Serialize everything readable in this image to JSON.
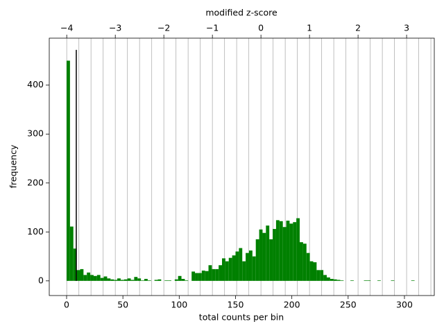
{
  "chart_data": {
    "type": "histogram",
    "xlabel": "total counts per bin",
    "ylabel": "frequency",
    "x2label": "modified z-score",
    "color": "#008000",
    "bins": [
      0,
      3,
      6,
      9,
      12,
      15,
      18,
      21,
      24,
      27,
      30,
      33,
      36,
      39,
      42,
      45,
      48,
      51,
      54,
      57,
      60,
      63,
      66,
      69,
      72,
      75,
      78,
      81,
      84,
      87,
      90,
      93,
      96,
      99,
      102,
      105,
      108,
      111,
      114,
      117,
      120,
      123,
      126,
      129,
      132,
      135,
      138,
      141,
      144,
      147,
      150,
      153,
      156,
      159,
      162,
      165,
      168,
      171,
      174,
      177,
      180,
      183,
      186,
      189,
      192,
      195,
      198,
      201,
      204,
      207,
      210,
      213,
      216,
      219,
      222,
      225,
      228,
      231,
      234,
      237,
      240,
      243,
      246,
      249,
      252,
      255,
      258,
      261,
      264,
      267,
      270,
      273,
      276,
      279,
      282,
      285,
      288,
      291,
      294,
      297,
      300,
      303,
      306,
      309,
      312
    ],
    "values": [
      450,
      111,
      66,
      22,
      24,
      12,
      17,
      12,
      10,
      12,
      6,
      9,
      5,
      3,
      2,
      5,
      2,
      3,
      5,
      2,
      8,
      5,
      1,
      4,
      1,
      0,
      2,
      3,
      0,
      1,
      1,
      0,
      3,
      10,
      4,
      1,
      0,
      19,
      16,
      16,
      21,
      20,
      32,
      24,
      24,
      32,
      46,
      40,
      47,
      52,
      60,
      67,
      40,
      57,
      62,
      50,
      85,
      105,
      98,
      113,
      85,
      106,
      124,
      122,
      110,
      123,
      117,
      120,
      128,
      79,
      76,
      57,
      40,
      38,
      22,
      22,
      12,
      7,
      4,
      3,
      2,
      1,
      0,
      0,
      1,
      0,
      0,
      0,
      1,
      1,
      0,
      0,
      1,
      0,
      0,
      0,
      1,
      0,
      0,
      0,
      0,
      0,
      1,
      0
    ],
    "xlim": [
      -15.4,
      326.5
    ],
    "xticks": [
      0,
      50,
      100,
      150,
      200,
      250,
      300
    ],
    "ylim": [
      -30,
      496
    ],
    "yticks": [
      0,
      100,
      200,
      300,
      400
    ],
    "x2lim": [
      -4.36,
      3.57
    ],
    "x2ticks": [
      {
        "value": -4,
        "label": "−4"
      },
      {
        "value": -3,
        "label": "−3"
      },
      {
        "value": -2,
        "label": "−2"
      },
      {
        "value": -1,
        "label": "−1"
      },
      0,
      1,
      2,
      3
    ],
    "x2grid": [
      -4,
      -3.75,
      -3.5,
      -3.25,
      -3,
      -2.75,
      -2.5,
      -2.25,
      -2,
      -1.75,
      -1.5,
      -1.25,
      -1,
      -0.75,
      -0.5,
      -0.25,
      0,
      0.25,
      0.5,
      0.75,
      1,
      1.25,
      1.5,
      1.75,
      2,
      2.25,
      2.5,
      2.75,
      3,
      3.25,
      3.5
    ],
    "vline": {
      "x": 8.6,
      "y": [
        0,
        472
      ],
      "color": "#000000"
    }
  }
}
